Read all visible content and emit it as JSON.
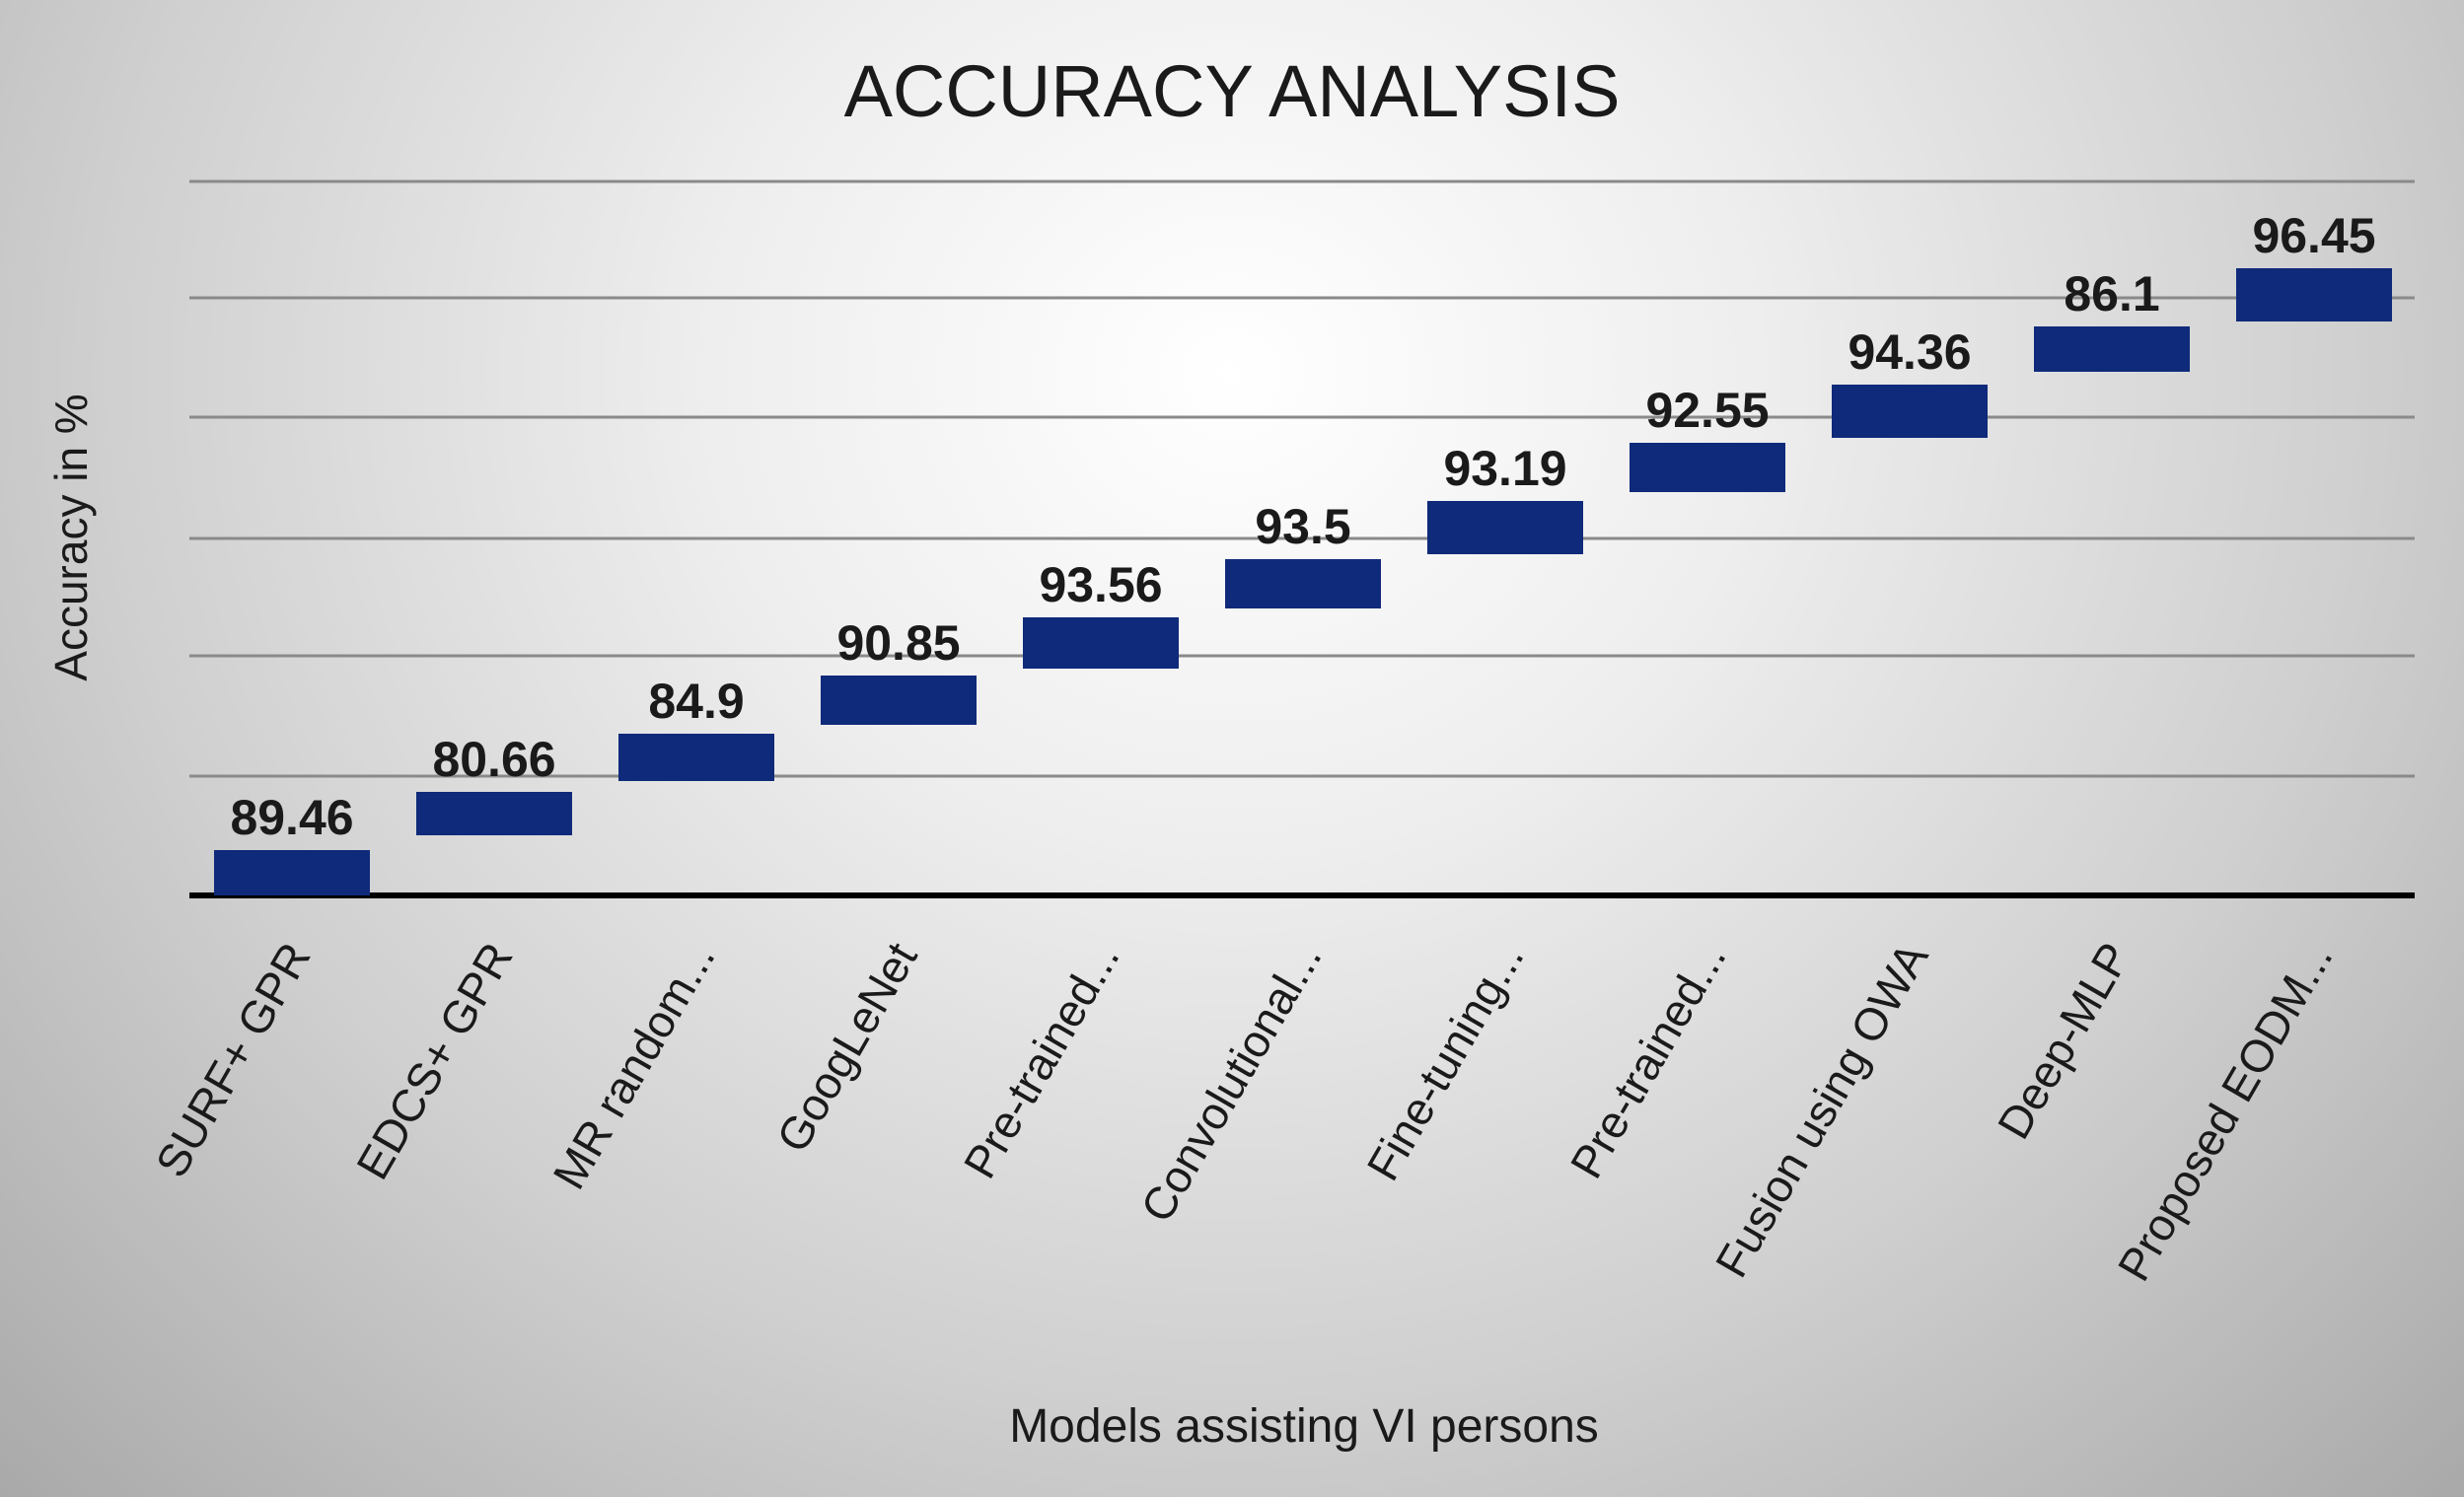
{
  "chart_data": {
    "type": "bar",
    "title": "ACCURACY ANALYSIS",
    "xlabel": "Models assisting VI persons",
    "ylabel": "Accuracy in %",
    "categories": [
      "SURF+ GPR",
      "EDCS+ GPR",
      "MR random...",
      "GoogLeNet",
      "Pre-trained...",
      "Convolutional...",
      "Fine-tuning...",
      "Pre-trained...",
      "Fusion using OWA",
      "Deep-MLP",
      "Proposed EODM..."
    ],
    "values": [
      89.46,
      80.66,
      84.9,
      90.85,
      93.56,
      93.5,
      93.19,
      92.55,
      94.36,
      86.1,
      96.45
    ],
    "data_labels": [
      "89.46",
      "80.66",
      "84.9",
      "90.85",
      "93.56",
      "93.5",
      "93.19",
      "92.55",
      "94.36",
      "86.1",
      "96.45"
    ],
    "series_color": "#0f2a7a",
    "gridlines": true,
    "legend": "none",
    "note": "Markers form a stepped ascending sequence by model order."
  }
}
